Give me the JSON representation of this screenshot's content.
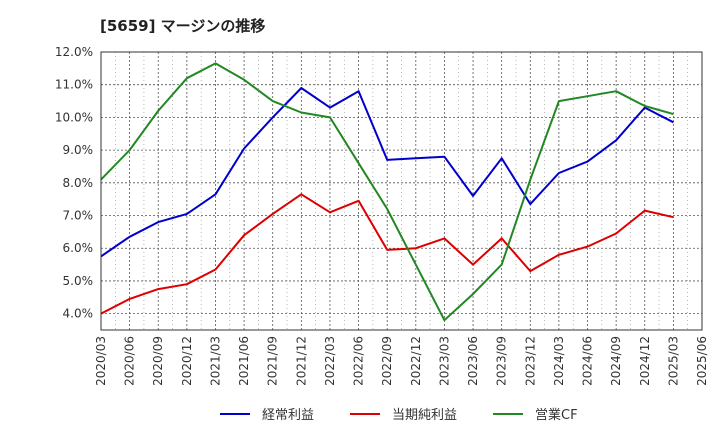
{
  "chart_data": {
    "type": "line",
    "title": "[5659]  マージンの推移",
    "xlabel": "",
    "ylabel": "",
    "ylim": [
      3.5,
      12.0
    ],
    "yticks": [
      "4.0%",
      "5.0%",
      "6.0%",
      "7.0%",
      "8.0%",
      "9.0%",
      "10.0%",
      "11.0%",
      "12.0%"
    ],
    "ytick_values": [
      4,
      5,
      6,
      7,
      8,
      9,
      10,
      11,
      12
    ],
    "categories": [
      "2020/03",
      "2020/06",
      "2020/09",
      "2020/12",
      "2021/03",
      "2021/06",
      "2021/09",
      "2021/12",
      "2022/03",
      "2022/06",
      "2022/09",
      "2022/12",
      "2023/03",
      "2023/06",
      "2023/09",
      "2023/12",
      "2024/03",
      "2024/06",
      "2024/09",
      "2024/12",
      "2025/03",
      "2025/06"
    ],
    "grid": true,
    "legend_position": "bottom",
    "series": [
      {
        "name": "経常利益",
        "color": "#0000cc",
        "values": [
          5.75,
          6.35,
          6.8,
          7.05,
          7.65,
          9.05,
          10.0,
          10.9,
          10.3,
          10.8,
          8.7,
          8.75,
          8.8,
          7.6,
          8.75,
          7.35,
          8.3,
          8.65,
          9.3,
          10.3,
          9.85,
          null
        ]
      },
      {
        "name": "当期純利益",
        "color": "#dd0000",
        "values": [
          4.0,
          4.45,
          4.75,
          4.9,
          5.35,
          6.4,
          7.05,
          7.65,
          7.1,
          7.45,
          5.95,
          6.0,
          6.3,
          5.5,
          6.3,
          5.3,
          5.8,
          6.05,
          6.45,
          7.15,
          6.95,
          null
        ]
      },
      {
        "name": "営業CF",
        "color": "#228822",
        "values": [
          8.1,
          9.0,
          10.2,
          11.2,
          11.65,
          11.15,
          10.5,
          10.15,
          10.0,
          8.6,
          7.2,
          5.5,
          3.8,
          4.6,
          5.5,
          8.1,
          10.5,
          10.65,
          10.8,
          10.35,
          10.1,
          null
        ]
      }
    ]
  }
}
